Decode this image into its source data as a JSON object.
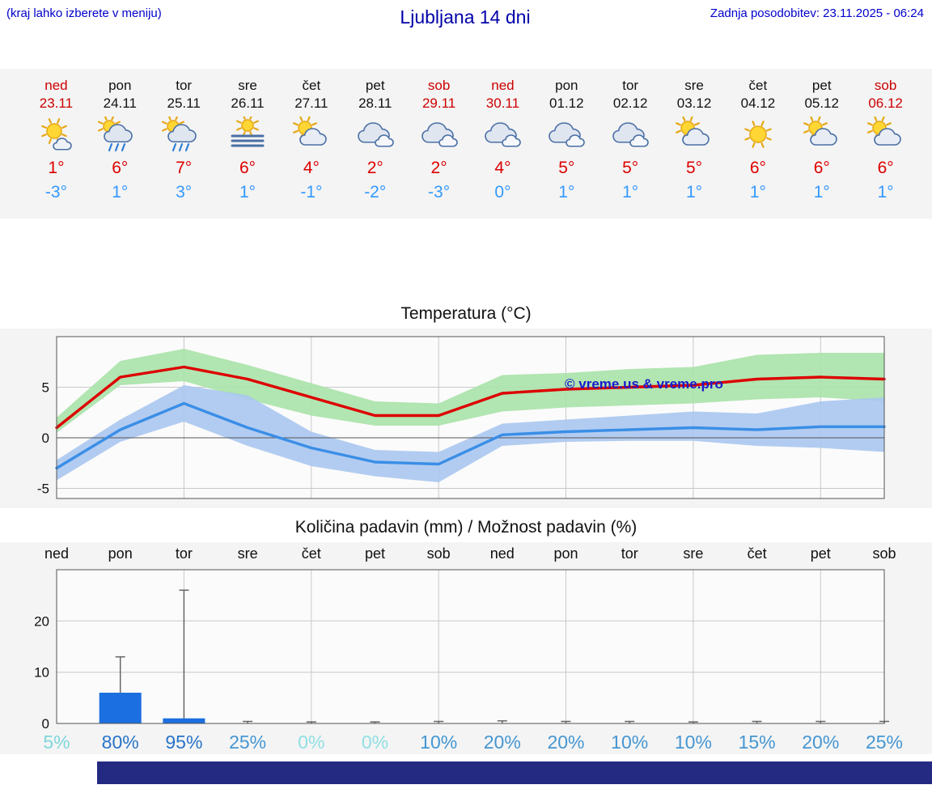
{
  "header": {
    "hint": "(kraj lahko izberete v meniju)",
    "title": "Ljubljana 14 dni",
    "last_update": "Zadnja posodobitev: 23.11.2025 - 06:24"
  },
  "colors": {
    "link_blue": "#0000cc",
    "title_blue": "#0000a8",
    "holiday_red": "#cc0000",
    "high_temp_red": "#dd0000",
    "low_temp_blue": "#3399ff",
    "strip_background": "#f4f4f4",
    "footer_bar": "#242a82",
    "watermark_blue": "#1a1acc"
  },
  "days": [
    {
      "name": "ned",
      "date": "23.11",
      "holiday": true,
      "icon": "sun-small-cloud",
      "high": "1°",
      "low": "-3°"
    },
    {
      "name": "pon",
      "date": "24.11",
      "holiday": false,
      "icon": "rain-sun",
      "high": "6°",
      "low": "1°"
    },
    {
      "name": "tor",
      "date": "25.11",
      "holiday": false,
      "icon": "rain-sun",
      "high": "7°",
      "low": "3°"
    },
    {
      "name": "sre",
      "date": "26.11",
      "holiday": false,
      "icon": "fog-sun",
      "high": "6°",
      "low": "1°"
    },
    {
      "name": "čet",
      "date": "27.11",
      "holiday": false,
      "icon": "sun-cloud",
      "high": "4°",
      "low": "-1°"
    },
    {
      "name": "pet",
      "date": "28.11",
      "holiday": false,
      "icon": "clouds",
      "high": "2°",
      "low": "-2°"
    },
    {
      "name": "sob",
      "date": "29.11",
      "holiday": true,
      "icon": "clouds",
      "high": "2°",
      "low": "-3°"
    },
    {
      "name": "ned",
      "date": "30.11",
      "holiday": true,
      "icon": "clouds",
      "high": "4°",
      "low": "0°"
    },
    {
      "name": "pon",
      "date": "01.12",
      "holiday": false,
      "icon": "clouds",
      "high": "5°",
      "low": "1°"
    },
    {
      "name": "tor",
      "date": "02.12",
      "holiday": false,
      "icon": "clouds",
      "high": "5°",
      "low": "1°"
    },
    {
      "name": "sre",
      "date": "03.12",
      "holiday": false,
      "icon": "sun-cloud",
      "high": "5°",
      "low": "1°"
    },
    {
      "name": "čet",
      "date": "04.12",
      "holiday": false,
      "icon": "sun",
      "high": "6°",
      "low": "1°"
    },
    {
      "name": "pet",
      "date": "05.12",
      "holiday": false,
      "icon": "sun-cloud",
      "high": "6°",
      "low": "1°"
    },
    {
      "name": "sob",
      "date": "06.12",
      "holiday": true,
      "icon": "sun-cloud",
      "high": "6°",
      "low": "1°"
    }
  ],
  "chart_data": [
    {
      "type": "line",
      "title": "Temperatura (°C)",
      "x": [
        "ned",
        "pon",
        "tor",
        "sre",
        "čet",
        "pet",
        "sob",
        "ned",
        "pon",
        "tor",
        "sre",
        "čet",
        "pet",
        "sob"
      ],
      "ylim": [
        -6,
        10
      ],
      "yticks": [
        -5,
        0,
        5
      ],
      "grid": true,
      "watermark": "© vreme.us & vreme.pro",
      "series": [
        {
          "name": "max-temperature",
          "color": "#dd0000",
          "values": [
            1,
            6,
            7,
            5.8,
            4,
            2.2,
            2.2,
            4.4,
            4.8,
            5,
            5.2,
            5.8,
            6,
            5.8
          ]
        },
        {
          "name": "min-temperature",
          "color": "#3a8ee6",
          "values": [
            -3,
            0.8,
            3.4,
            1,
            -1,
            -2.4,
            -2.6,
            0.3,
            0.6,
            0.8,
            1,
            0.8,
            1.1,
            1.1
          ]
        }
      ],
      "bands": [
        {
          "name": "max-temperature-range",
          "color": "#a9e2a9",
          "upper": [
            2,
            7.6,
            8.8,
            7.2,
            5.4,
            3.6,
            3.4,
            6.2,
            6.4,
            6.8,
            7,
            8.2,
            8.4,
            8.4
          ],
          "lower": [
            0.5,
            5.2,
            5.6,
            3.8,
            2.2,
            1.2,
            1.2,
            2.6,
            3,
            3.2,
            3.4,
            3.8,
            4,
            3.6
          ]
        },
        {
          "name": "min-temperature-range",
          "color": "#aac6ef",
          "upper": [
            -2.2,
            1.8,
            5.2,
            4.2,
            0.6,
            -1.2,
            -1.4,
            1.4,
            1.8,
            2.2,
            2.6,
            2.4,
            3.6,
            4
          ],
          "lower": [
            -4.2,
            -0.4,
            1.6,
            -0.8,
            -2.8,
            -3.8,
            -4.4,
            -0.8,
            -0.4,
            -0.3,
            -0.3,
            -0.8,
            -1,
            -1.4
          ]
        }
      ]
    },
    {
      "type": "bar",
      "title": "Količina padavin (mm) / Možnost padavin (%)",
      "categories": [
        "ned",
        "pon",
        "tor",
        "sre",
        "čet",
        "pet",
        "sob",
        "ned",
        "pon",
        "tor",
        "sre",
        "čet",
        "pet",
        "sob"
      ],
      "values": [
        0,
        6,
        1,
        0,
        0,
        0,
        0,
        0,
        0,
        0,
        0,
        0,
        0,
        0
      ],
      "max_values": [
        0,
        13,
        26,
        0.4,
        0.3,
        0.3,
        0.4,
        0.5,
        0.4,
        0.4,
        0.3,
        0.4,
        0.4,
        0.4
      ],
      "ylim": [
        0,
        30
      ],
      "yticks": [
        0,
        10,
        20
      ],
      "grid": true,
      "bar_color": "#1b6fe0",
      "probabilities": [
        {
          "label": "5%",
          "color": "#7fd6dc"
        },
        {
          "label": "80%",
          "color": "#2873c8"
        },
        {
          "label": "95%",
          "color": "#2873c8"
        },
        {
          "label": "25%",
          "color": "#4496d2"
        },
        {
          "label": "0%",
          "color": "#8fdfe4"
        },
        {
          "label": "0%",
          "color": "#8fdfe4"
        },
        {
          "label": "10%",
          "color": "#4496d2"
        },
        {
          "label": "20%",
          "color": "#4496d2"
        },
        {
          "label": "20%",
          "color": "#4496d2"
        },
        {
          "label": "10%",
          "color": "#4496d2"
        },
        {
          "label": "10%",
          "color": "#4496d2"
        },
        {
          "label": "15%",
          "color": "#4496d2"
        },
        {
          "label": "20%",
          "color": "#4496d2"
        },
        {
          "label": "25%",
          "color": "#4496d2"
        }
      ]
    }
  ]
}
